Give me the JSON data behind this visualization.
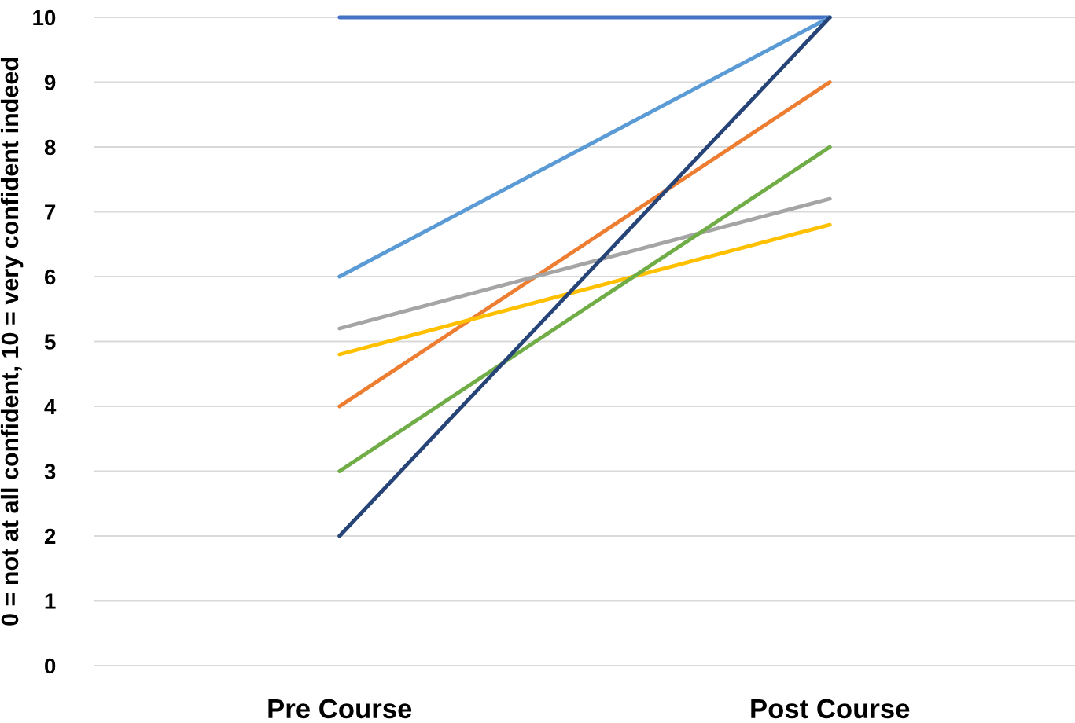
{
  "chart_data": {
    "type": "line",
    "ylabel": "0 = not at all confident, 10 = very confident indeed",
    "categories": [
      "Pre Course",
      "Post Course"
    ],
    "series": [
      {
        "color": "#4472c4",
        "values": [
          10,
          10
        ]
      },
      {
        "color": "#ed7d31",
        "values": [
          4,
          9
        ]
      },
      {
        "color": "#a5a5a5",
        "values": [
          5.2,
          7.2
        ]
      },
      {
        "color": "#ffc000",
        "values": [
          4.8,
          6.8
        ]
      },
      {
        "color": "#5b9bd5",
        "values": [
          6,
          10
        ]
      },
      {
        "color": "#70ad47",
        "values": [
          3,
          8
        ]
      },
      {
        "color": "#264478",
        "values": [
          2,
          10
        ]
      }
    ],
    "ylim": [
      0,
      10
    ],
    "yticks": [
      0,
      1,
      2,
      3,
      4,
      5,
      6,
      7,
      8,
      9,
      10
    ],
    "grid": "y",
    "marker": "none",
    "line_style": "solid"
  }
}
